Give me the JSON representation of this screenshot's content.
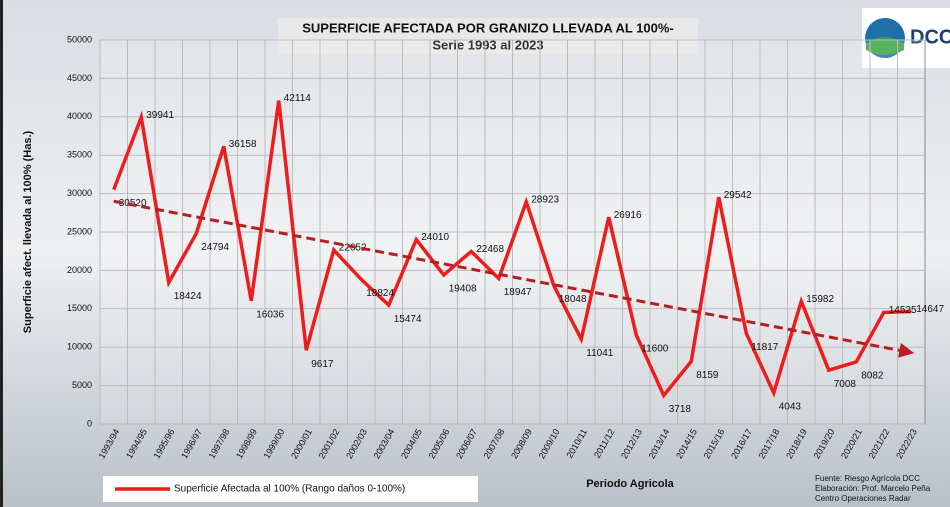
{
  "chart_data": {
    "type": "line",
    "title": "SUPERFICIE AFECTADA POR GRANIZO LLEVADA AL 100%-",
    "subtitle": "Serie 1993 al 2023",
    "y_label": "Superficie afect. llevada al 100% (Has.)",
    "x_label": "Periodo Agricola",
    "logo": "DCC",
    "source": [
      "Fuente: Riesgo Agrícola DCC",
      "Elaboración: Prof. Marcelo Peña",
      "Centro Operaciones Radar"
    ],
    "categories": [
      "1993/94",
      "1994/95",
      "1995/96",
      "1996/97",
      "1997/98",
      "1998/99",
      "1999/00",
      "2000/01",
      "2001/02",
      "2002/03",
      "2003/04",
      "2004/05",
      "2005/06",
      "2006/07",
      "2007/08",
      "2008/09",
      "2009/10",
      "2010/11",
      "2011/12",
      "2012/13",
      "2013/14",
      "2014/15",
      "2015/16",
      "2016/17",
      "2017/18",
      "2018/19",
      "2019/20",
      "2020/21",
      "2021/22",
      "2022/23"
    ],
    "series": [
      {
        "name": "Superficie Afectada al 100% (Rango daños 0-100%)",
        "color": "#ee1c1c",
        "values": [
          30520,
          39941,
          18424,
          24794,
          36158,
          16036,
          42114,
          9617,
          22652,
          18824,
          15474,
          24010,
          19408,
          22468,
          18947,
          28923,
          18048,
          11041,
          26916,
          11600,
          3718,
          8159,
          29542,
          11817,
          4043,
          15982,
          7008,
          8082,
          14525,
          14647
        ]
      }
    ],
    "trendline": {
      "start": 29000,
      "end": 9300,
      "color": "#b51f24"
    },
    "ylim": [
      0,
      50000
    ],
    "yticks": [
      0,
      5000,
      10000,
      15000,
      20000,
      25000,
      30000,
      35000,
      40000,
      45000,
      50000
    ],
    "grid": true
  }
}
